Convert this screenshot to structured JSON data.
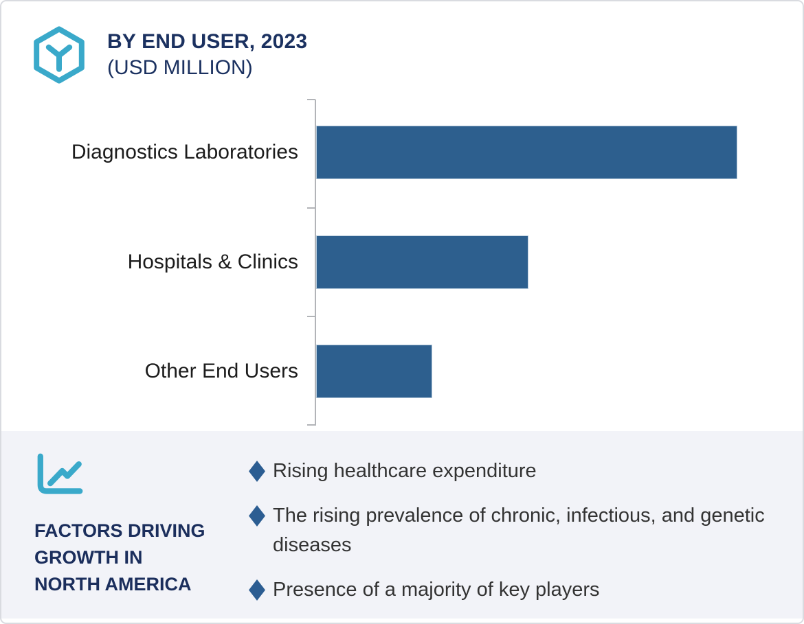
{
  "header": {
    "logo_icon": "hexagon-y-logo",
    "title": "BY END USER, 2023",
    "subtitle": "(USD MILLION)"
  },
  "chart_data": {
    "type": "bar",
    "orientation": "horizontal",
    "title": "BY END USER, 2023",
    "units_label": "(USD MILLION)",
    "categories": [
      "Diagnostics Laboratories",
      "Hospitals & Clinics",
      "Other End Users"
    ],
    "values_pct_of_max": [
      100,
      50.4,
      27.6
    ],
    "value_axis_labels_visible": false,
    "data_labels_visible": false,
    "note": "No numeric axis or data labels are shown; bar lengths estimated as percent of the longest bar",
    "bar_color": "#2d5f8e",
    "axis_line_color": "#b2b4b8",
    "grid": "off",
    "legend": "none"
  },
  "factors": {
    "chart_icon": "line-chart-icon",
    "heading_lines": [
      "FACTORS DRIVING",
      "GROWTH IN",
      "NORTH AMERICA"
    ],
    "items": [
      "Rising healthcare expenditure",
      "The rising prevalence of chronic, infectious, and genetic diseases",
      "Presence of a majority of key players"
    ]
  },
  "colors": {
    "accent_teal": "#3aa9ca",
    "navy_text": "#1b3160",
    "bar_blue": "#2d5f8e",
    "bullet_diamond": "#2c5d92",
    "panel_background": "#f2f3f8",
    "frame_border": "#d9dbe0"
  }
}
